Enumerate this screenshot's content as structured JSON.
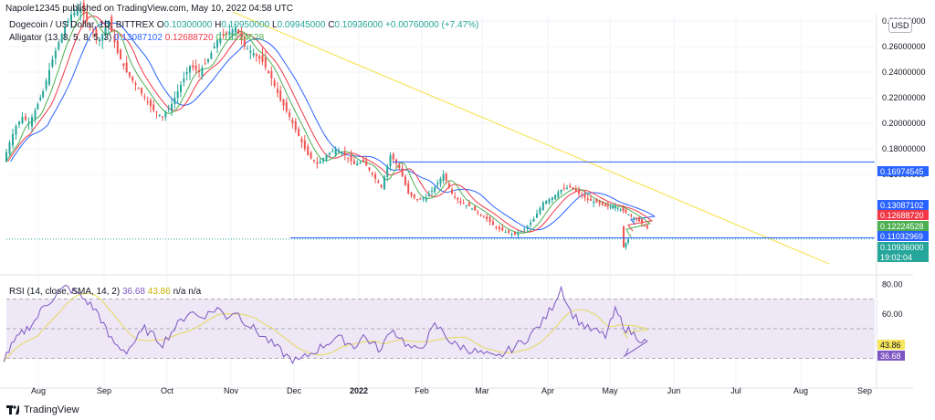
{
  "header": {
    "publisher_line": "Napole12345 published on TradingView.com, May 10, 2022 04:58 UTC"
  },
  "legend": {
    "symbol": "Dogecoin / US Dollar, 1D, BITTREX",
    "o_label": "O",
    "o_value": "0.10300000",
    "h_label": "H",
    "h_value": "0.10950000",
    "l_label": "L",
    "l_value": "0.09945000",
    "c_label": "C",
    "c_value": "0.10936000",
    "change": "+0.00760000 (+7.47%)",
    "alligator_label": "Alligator (13, 8, 5, 8, 5, 3)",
    "alligator_jaw": "0.13087102",
    "alligator_teeth": "0.12688720",
    "alligator_lips": "0.12224528",
    "rsi_label": "RSI (14, close, SMA, 14, 2)",
    "rsi_value": "36.68",
    "rsi_ma_value": "43.86",
    "rsi_na1": "n/a",
    "rsi_na2": "n/a"
  },
  "currency_badge": "USD",
  "footer": {
    "brand": "TradingView"
  },
  "colors": {
    "up": "#26a69a",
    "down": "#ef5350",
    "jaw": "#2962ff",
    "teeth": "#f23645",
    "lips": "#4caf50",
    "trendline": "#f7e55c",
    "hline": "#2962ff",
    "rsi": "#7e57c2",
    "rsi_ma": "#e8d85a",
    "rsi_band": "#ede7f6"
  },
  "chart_data": [
    {
      "type": "candlestick",
      "title": "",
      "y_axis_ticks": [
        "0.28000000",
        "0.26000000",
        "0.24000000",
        "0.22000000",
        "0.20000000",
        "0.18000000",
        "0.16000000"
      ],
      "x_axis_ticks": [
        "Aug",
        "Sep",
        "Oct",
        "Nov",
        "Dec",
        "2022",
        "Feb",
        "Mar",
        "Apr",
        "May",
        "Jun",
        "Jul",
        "Aug",
        "Sep"
      ],
      "ylim": [
        0.085,
        0.285
      ],
      "price_labels": [
        {
          "name": "horizontal-line",
          "value": "0.16974545"
        },
        {
          "name": "alligator-jaw",
          "value": "0.13087102"
        },
        {
          "name": "alligator-teeth",
          "value": "0.12688720"
        },
        {
          "name": "alligator-lips",
          "value": "0.12224528"
        },
        {
          "name": "support-line",
          "value": "0.11032969"
        },
        {
          "name": "last-price",
          "value": "0.10936000"
        },
        {
          "name": "countdown",
          "value": "19:02:04"
        }
      ],
      "closes_by_month": [
        {
          "month": "Jul 2021",
          "values": [
            0.17,
            0.185,
            0.198,
            0.205,
            0.2,
            0.21
          ]
        },
        {
          "month": "Aug 2021",
          "values": [
            0.225,
            0.25,
            0.27,
            0.285,
            0.29,
            0.275,
            0.265
          ]
        },
        {
          "month": "Sep 2021",
          "values": [
            0.28,
            0.255,
            0.24,
            0.23,
            0.22,
            0.21,
            0.205
          ]
        },
        {
          "month": "Oct 2021",
          "values": [
            0.215,
            0.23,
            0.245,
            0.24,
            0.25,
            0.265,
            0.27
          ]
        },
        {
          "month": "Nov 2021",
          "values": [
            0.275,
            0.26,
            0.255,
            0.248,
            0.235,
            0.218,
            0.205
          ]
        },
        {
          "month": "Dec 2021",
          "values": [
            0.19,
            0.175,
            0.168,
            0.175,
            0.18,
            0.175,
            0.168
          ]
        },
        {
          "month": "Jan 2022",
          "values": [
            0.17,
            0.16,
            0.15,
            0.175,
            0.165,
            0.145,
            0.14
          ]
        },
        {
          "month": "Feb 2022",
          "values": [
            0.142,
            0.15,
            0.16,
            0.145,
            0.138,
            0.135,
            0.13
          ]
        },
        {
          "month": "Mar 2022",
          "values": [
            0.125,
            0.118,
            0.115,
            0.113,
            0.117,
            0.125,
            0.138
          ]
        },
        {
          "month": "Apr 2022",
          "values": [
            0.142,
            0.148,
            0.15,
            0.145,
            0.14,
            0.138,
            0.135
          ]
        },
        {
          "month": "May 2022",
          "values": [
            0.135,
            0.13,
            0.125,
            0.118,
            0.103,
            0.109
          ]
        }
      ],
      "alligator": "jaw (blue), teeth (red), lips (green) smoothed moving averages following price",
      "horizontal_line": 0.16974545,
      "support_line": 0.11032969,
      "trendline": {
        "from": {
          "time": "Oct 2021",
          "price": 0.287
        },
        "to": {
          "time": "Aug 2022",
          "price": 0.09
        }
      }
    },
    {
      "type": "line",
      "title": "",
      "y_axis_ticks": [
        "80.00",
        "60.00"
      ],
      "ylim": [
        18,
        82
      ],
      "band": [
        30,
        70
      ],
      "midline": 50,
      "rsi_by_month": [
        {
          "month": "Jul 2021",
          "values": [
            30,
            38,
            45,
            50,
            55
          ]
        },
        {
          "month": "Aug 2021",
          "values": [
            65,
            72,
            78,
            74,
            68,
            60
          ]
        },
        {
          "month": "Sep 2021",
          "values": [
            45,
            38,
            35,
            42,
            50,
            45,
            40
          ]
        },
        {
          "month": "Oct 2021",
          "values": [
            48,
            55,
            62,
            58,
            60,
            64,
            58
          ]
        },
        {
          "month": "Nov 2021",
          "values": [
            62,
            55,
            50,
            45,
            40,
            35,
            30
          ]
        },
        {
          "month": "Dec 2021",
          "values": [
            28,
            32,
            36,
            40,
            44,
            42,
            38
          ]
        },
        {
          "month": "Jan 2022",
          "values": [
            45,
            40,
            35,
            50,
            45,
            38,
            35
          ]
        },
        {
          "month": "Feb 2022",
          "values": [
            42,
            52,
            48,
            40,
            38,
            36,
            34
          ]
        },
        {
          "month": "Mar 2022",
          "values": [
            32,
            30,
            34,
            38,
            42,
            48,
            55
          ]
        },
        {
          "month": "Apr 2022",
          "values": [
            65,
            78,
            62,
            55,
            50,
            48,
            45
          ]
        },
        {
          "month": "May 2022",
          "values": [
            62,
            50,
            45,
            40,
            30,
            36.68
          ]
        }
      ],
      "rsi_ma_last": 43.86,
      "rsi_last": 36.68
    }
  ]
}
